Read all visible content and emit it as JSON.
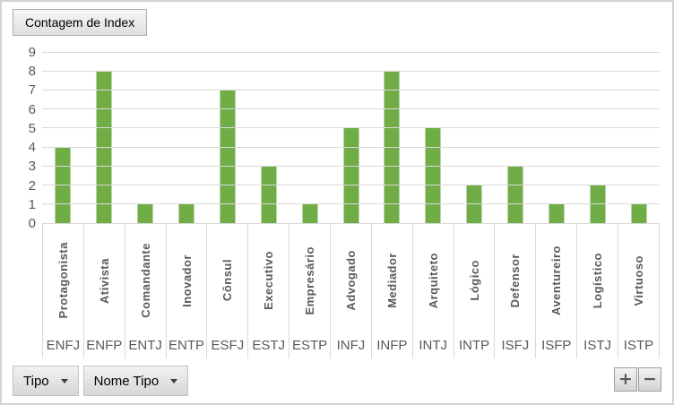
{
  "pivot_button": {
    "label": "Contagem de Index"
  },
  "field_buttons": [
    {
      "label": "Tipo"
    },
    {
      "label": "Nome Tipo"
    }
  ],
  "zoom_buttons": {
    "expand_label": "+",
    "collapse_label": "−"
  },
  "chart_data": {
    "type": "bar",
    "title": "Contagem de Index",
    "categories": [
      "ENFJ",
      "ENFP",
      "ENTJ",
      "ENTP",
      "ESFJ",
      "ESTJ",
      "ESTP",
      "INFJ",
      "INFP",
      "INTJ",
      "INTP",
      "ISFJ",
      "ISFP",
      "ISTJ",
      "ISTP"
    ],
    "category_names": [
      "Protagonista",
      "Ativista",
      "Comandante",
      "Inovador",
      "Cônsul",
      "Executivo",
      "Empresário",
      "Advogado",
      "Mediador",
      "Arquiteto",
      "Lógico",
      "Defensor",
      "Aventureiro",
      "Logístico",
      "Virtuoso"
    ],
    "values": [
      4,
      8,
      1,
      1,
      7,
      3,
      1,
      5,
      8,
      5,
      2,
      3,
      1,
      2,
      1
    ],
    "xlabel": "",
    "ylabel": "",
    "ylim": [
      0,
      9
    ],
    "yticks": [
      0,
      1,
      2,
      3,
      4,
      5,
      6,
      7,
      8,
      9
    ],
    "grid": true,
    "legend_position": "none",
    "bar_color": "#70AD47",
    "gridline_color": "#D9D9D9",
    "axis_text_color": "#595959"
  }
}
